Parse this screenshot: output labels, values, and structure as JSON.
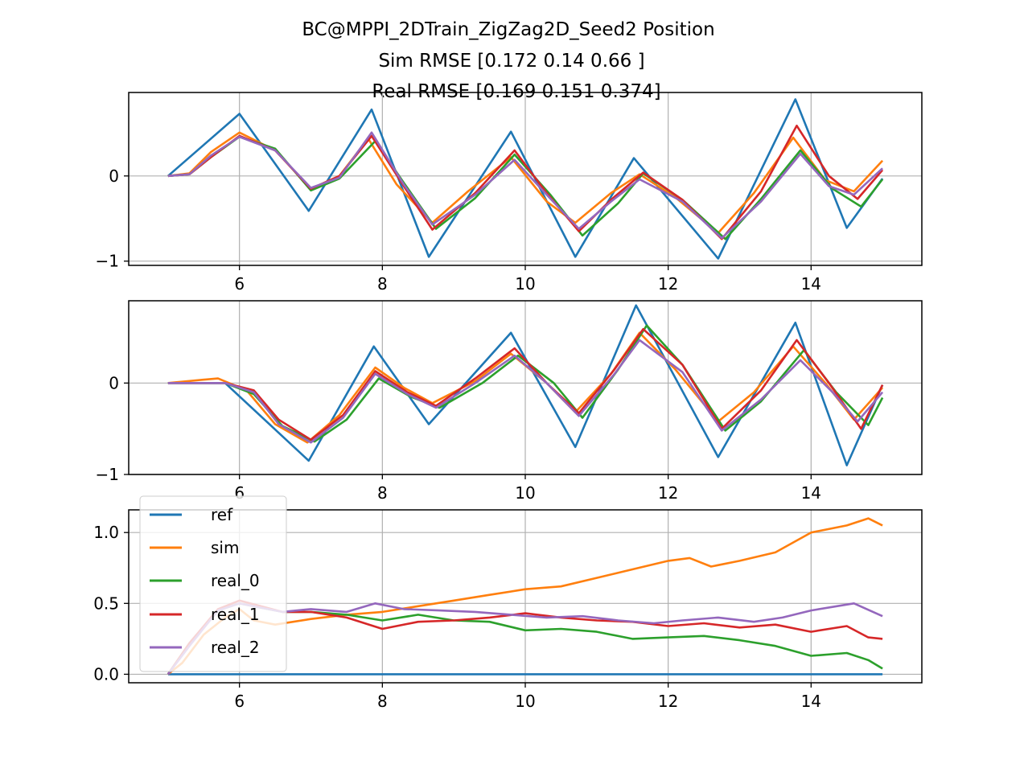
{
  "title_lines": [
    "BC@MPPI_2DTrain_ZigZag2D_Seed2    Position",
    "Sim RMSE [0.172 0.14  0.66 ]",
    "Real RMSE [0.169 0.151 0.374]"
  ],
  "colors": {
    "ref": "#1f77b4",
    "sim": "#ff7f0e",
    "real_0": "#2ca02c",
    "real_1": "#d62728",
    "real_2": "#9467bd",
    "grid": "#b0b0b0"
  },
  "legend": {
    "placement": "top-left of bottom subplot",
    "entries": [
      "ref",
      "sim",
      "real_0",
      "real_1",
      "real_2"
    ]
  },
  "chart_data": [
    {
      "type": "line",
      "subplot": 1,
      "xlim": [
        4.45,
        15.55
      ],
      "ylim": [
        -1.05,
        0.98
      ],
      "xticks": [
        6,
        8,
        10,
        12,
        14
      ],
      "yticks": [
        -1,
        0
      ],
      "ytick_labels": [
        "−1",
        "0"
      ],
      "grid": true,
      "series": [
        {
          "name": "ref",
          "x": [
            5.0,
            6.0,
            6.97,
            7.85,
            8.65,
            9.8,
            10.7,
            11.52,
            12.7,
            13.78,
            14.5,
            15.0
          ],
          "y": [
            0.0,
            0.73,
            -0.41,
            0.78,
            -0.95,
            0.52,
            -0.95,
            0.21,
            -0.97,
            0.9,
            -0.61,
            -0.03
          ]
        },
        {
          "name": "sim",
          "x": [
            5.0,
            5.3,
            5.6,
            6.0,
            6.5,
            7.0,
            7.4,
            7.8,
            8.2,
            8.7,
            9.2,
            9.8,
            10.3,
            10.7,
            11.2,
            11.6,
            12.1,
            12.7,
            13.2,
            13.75,
            14.2,
            14.6,
            15.0
          ],
          "y": [
            0.0,
            0.03,
            0.28,
            0.51,
            0.3,
            -0.15,
            0.0,
            0.44,
            -0.1,
            -0.55,
            -0.18,
            0.22,
            -0.3,
            -0.55,
            -0.2,
            0.02,
            -0.25,
            -0.67,
            -0.2,
            0.45,
            -0.05,
            -0.18,
            0.18
          ]
        },
        {
          "name": "real_0",
          "x": [
            5.0,
            5.3,
            5.6,
            6.0,
            6.5,
            7.0,
            7.4,
            7.9,
            8.3,
            8.75,
            9.3,
            9.85,
            10.35,
            10.8,
            11.3,
            11.65,
            12.2,
            12.8,
            13.3,
            13.85,
            14.3,
            14.7,
            15.0
          ],
          "y": [
            0.0,
            0.02,
            0.22,
            0.46,
            0.32,
            -0.17,
            -0.03,
            0.41,
            -0.08,
            -0.62,
            -0.26,
            0.25,
            -0.22,
            -0.7,
            -0.32,
            0.03,
            -0.28,
            -0.74,
            -0.27,
            0.3,
            -0.15,
            -0.36,
            -0.04
          ]
        },
        {
          "name": "real_1",
          "x": [
            5.0,
            5.3,
            5.6,
            6.0,
            6.5,
            7.0,
            7.4,
            7.85,
            8.3,
            8.7,
            9.3,
            9.85,
            10.3,
            10.75,
            11.2,
            11.65,
            12.2,
            12.75,
            13.3,
            13.8,
            14.25,
            14.65,
            15.0
          ],
          "y": [
            0.0,
            0.02,
            0.22,
            0.47,
            0.3,
            -0.15,
            0.0,
            0.47,
            -0.12,
            -0.63,
            -0.2,
            0.3,
            -0.2,
            -0.65,
            -0.28,
            0.04,
            -0.28,
            -0.74,
            -0.18,
            0.59,
            0.0,
            -0.27,
            0.07
          ]
        },
        {
          "name": "real_2",
          "x": [
            5.0,
            5.3,
            5.6,
            6.0,
            6.5,
            7.0,
            7.4,
            7.85,
            8.3,
            8.7,
            9.3,
            9.85,
            10.3,
            10.75,
            11.2,
            11.6,
            12.2,
            12.75,
            13.3,
            13.85,
            14.25,
            14.6,
            15.0
          ],
          "y": [
            0.0,
            0.02,
            0.24,
            0.46,
            0.3,
            -0.14,
            -0.02,
            0.51,
            -0.1,
            -0.57,
            -0.22,
            0.19,
            -0.22,
            -0.62,
            -0.3,
            -0.04,
            -0.3,
            -0.73,
            -0.3,
            0.26,
            -0.12,
            -0.22,
            0.09
          ]
        }
      ]
    },
    {
      "type": "line",
      "subplot": 2,
      "xlim": [
        4.45,
        15.55
      ],
      "ylim": [
        -1.0,
        0.9
      ],
      "xticks": [
        6,
        8,
        10,
        12,
        14
      ],
      "yticks": [
        -1,
        0
      ],
      "ytick_labels": [
        "−1",
        "0"
      ],
      "grid": true,
      "series": [
        {
          "name": "ref",
          "x": [
            5.0,
            5.8,
            6.97,
            7.88,
            8.65,
            9.8,
            10.7,
            11.55,
            12.7,
            13.78,
            14.5,
            15.0
          ],
          "y": [
            0.0,
            0.0,
            -0.85,
            0.4,
            -0.45,
            0.55,
            -0.7,
            0.85,
            -0.81,
            0.66,
            -0.9,
            -0.02
          ]
        },
        {
          "name": "sim",
          "x": [
            5.0,
            5.4,
            5.7,
            6.1,
            6.5,
            6.95,
            7.4,
            7.9,
            8.3,
            8.7,
            9.3,
            9.8,
            10.3,
            10.7,
            11.2,
            11.6,
            12.1,
            12.7,
            13.2,
            13.75,
            14.2,
            14.6,
            15.0
          ],
          "y": [
            0.0,
            0.03,
            0.05,
            -0.08,
            -0.45,
            -0.65,
            -0.35,
            0.17,
            -0.05,
            -0.22,
            0.02,
            0.32,
            0.0,
            -0.32,
            0.1,
            0.55,
            0.15,
            -0.42,
            -0.1,
            0.4,
            0.0,
            -0.4,
            -0.05
          ]
        },
        {
          "name": "real_0",
          "x": [
            5.0,
            5.4,
            5.8,
            6.2,
            6.6,
            7.05,
            7.5,
            7.95,
            8.4,
            8.8,
            9.4,
            9.9,
            10.4,
            10.8,
            11.3,
            11.7,
            12.2,
            12.8,
            13.3,
            13.9,
            14.35,
            14.8,
            15.0
          ],
          "y": [
            0.0,
            0.0,
            0.0,
            -0.12,
            -0.47,
            -0.64,
            -0.4,
            0.05,
            -0.15,
            -0.27,
            0.0,
            0.3,
            0.0,
            -0.38,
            0.15,
            0.63,
            0.2,
            -0.52,
            -0.2,
            0.36,
            -0.1,
            -0.46,
            -0.16
          ]
        },
        {
          "name": "real_1",
          "x": [
            5.0,
            5.4,
            5.8,
            6.2,
            6.55,
            7.0,
            7.45,
            7.9,
            8.35,
            8.75,
            9.3,
            9.85,
            10.3,
            10.75,
            11.25,
            11.65,
            12.2,
            12.75,
            13.3,
            13.8,
            14.25,
            14.7,
            15.0
          ],
          "y": [
            0.0,
            0.0,
            0.0,
            -0.08,
            -0.4,
            -0.62,
            -0.35,
            0.13,
            -0.1,
            -0.25,
            0.05,
            0.38,
            0.0,
            -0.33,
            0.15,
            0.59,
            0.2,
            -0.5,
            -0.08,
            0.47,
            0.0,
            -0.5,
            -0.02
          ]
        },
        {
          "name": "real_2",
          "x": [
            5.0,
            5.4,
            5.8,
            6.2,
            6.55,
            7.0,
            7.45,
            7.9,
            8.35,
            8.75,
            9.3,
            9.85,
            10.3,
            10.75,
            11.25,
            11.6,
            12.2,
            12.75,
            13.3,
            13.85,
            14.3,
            14.65,
            15.0
          ],
          "y": [
            0.0,
            0.0,
            0.0,
            -0.1,
            -0.45,
            -0.65,
            -0.38,
            0.1,
            -0.12,
            -0.27,
            0.0,
            0.3,
            0.0,
            -0.36,
            0.1,
            0.47,
            0.12,
            -0.52,
            -0.18,
            0.25,
            -0.1,
            -0.42,
            -0.1
          ]
        }
      ]
    },
    {
      "type": "line",
      "subplot": 3,
      "xlim": [
        4.45,
        15.55
      ],
      "ylim": [
        -0.06,
        1.16
      ],
      "xticks": [
        6,
        8,
        10,
        12,
        14
      ],
      "yticks": [
        0.0,
        0.5,
        1.0
      ],
      "ytick_labels": [
        "0.0",
        "0.5",
        "1.0"
      ],
      "grid": true,
      "series": [
        {
          "name": "ref",
          "x": [
            5.0,
            15.0
          ],
          "y": [
            0.0,
            0.0
          ]
        },
        {
          "name": "sim",
          "x": [
            5.0,
            5.2,
            5.5,
            5.8,
            6.0,
            6.2,
            6.5,
            7.0,
            7.5,
            8.0,
            8.5,
            9.0,
            9.5,
            10.0,
            10.5,
            11.0,
            11.5,
            12.0,
            12.3,
            12.6,
            13.0,
            13.5,
            14.0,
            14.5,
            14.8,
            15.0
          ],
          "y": [
            0.0,
            0.08,
            0.28,
            0.4,
            0.46,
            0.38,
            0.35,
            0.39,
            0.42,
            0.44,
            0.48,
            0.52,
            0.56,
            0.6,
            0.62,
            0.68,
            0.74,
            0.8,
            0.82,
            0.76,
            0.8,
            0.86,
            1.0,
            1.05,
            1.1,
            1.05
          ]
        },
        {
          "name": "real_0",
          "x": [
            5.0,
            5.3,
            5.7,
            6.0,
            6.3,
            6.6,
            7.0,
            7.5,
            8.0,
            8.5,
            9.0,
            9.5,
            10.0,
            10.5,
            11.0,
            11.5,
            12.0,
            12.5,
            13.0,
            13.5,
            14.0,
            14.5,
            14.8,
            15.0
          ],
          "y": [
            0.0,
            0.22,
            0.45,
            0.5,
            0.47,
            0.44,
            0.44,
            0.42,
            0.38,
            0.42,
            0.38,
            0.37,
            0.31,
            0.32,
            0.3,
            0.25,
            0.26,
            0.27,
            0.24,
            0.2,
            0.13,
            0.15,
            0.1,
            0.04
          ]
        },
        {
          "name": "real_1",
          "x": [
            5.0,
            5.3,
            5.7,
            6.0,
            6.3,
            6.6,
            7.0,
            7.5,
            8.0,
            8.5,
            9.0,
            9.5,
            10.0,
            10.5,
            11.0,
            11.5,
            12.0,
            12.5,
            13.0,
            13.5,
            14.0,
            14.5,
            14.8,
            15.0
          ],
          "y": [
            0.0,
            0.22,
            0.46,
            0.52,
            0.48,
            0.44,
            0.44,
            0.4,
            0.32,
            0.37,
            0.38,
            0.4,
            0.43,
            0.4,
            0.38,
            0.37,
            0.34,
            0.36,
            0.33,
            0.35,
            0.3,
            0.34,
            0.26,
            0.25
          ]
        },
        {
          "name": "real_2",
          "x": [
            5.0,
            5.3,
            5.7,
            6.0,
            6.3,
            6.6,
            7.0,
            7.5,
            7.9,
            8.3,
            8.8,
            9.3,
            9.8,
            10.3,
            10.8,
            11.3,
            11.8,
            12.2,
            12.7,
            13.2,
            13.6,
            14.0,
            14.6,
            15.0
          ],
          "y": [
            0.0,
            0.2,
            0.45,
            0.5,
            0.47,
            0.44,
            0.46,
            0.44,
            0.5,
            0.46,
            0.45,
            0.44,
            0.42,
            0.4,
            0.41,
            0.38,
            0.36,
            0.38,
            0.4,
            0.37,
            0.4,
            0.45,
            0.5,
            0.41
          ]
        }
      ]
    }
  ]
}
